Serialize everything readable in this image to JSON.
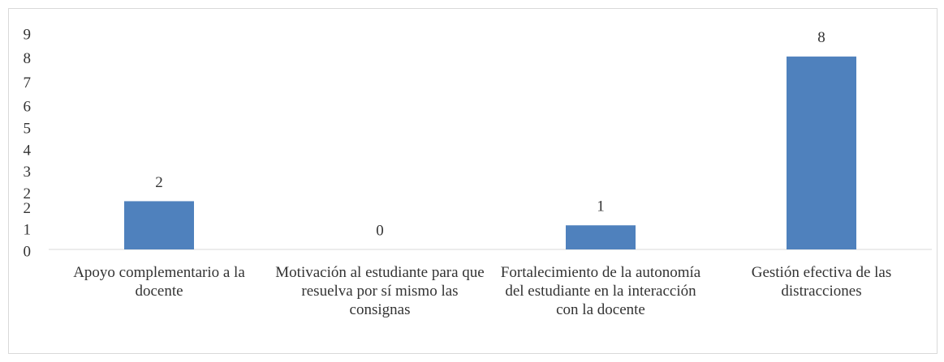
{
  "chart_data": {
    "type": "bar",
    "categories": [
      "Apoyo complementario a la docente",
      "Motivación al estudiante para que resuelva por sí mismo las consignas",
      "Fortalecimiento de la autonomía del estudiante en la interacción con la docente",
      "Gestión efectiva de las distracciones"
    ],
    "values": [
      2,
      0,
      1,
      8
    ],
    "color": "#4f81bd",
    "ylim": [
      0,
      9
    ],
    "yticks": [
      0,
      {
        "value": 0.9,
        "label": "1"
      },
      {
        "value": 1.8,
        "label": "2"
      },
      {
        "value": 2.4,
        "label": "2"
      },
      {
        "value": 3.3,
        "label": "3"
      },
      {
        "value": 4.2,
        "label": "4"
      },
      {
        "value": 5.1,
        "label": "5"
      },
      {
        "value": 6.0,
        "label": "6"
      },
      {
        "value": 7.0,
        "label": "7"
      },
      {
        "value": 8.0,
        "label": "8"
      },
      {
        "value": 9.0,
        "label": "9"
      }
    ],
    "grid": false
  }
}
